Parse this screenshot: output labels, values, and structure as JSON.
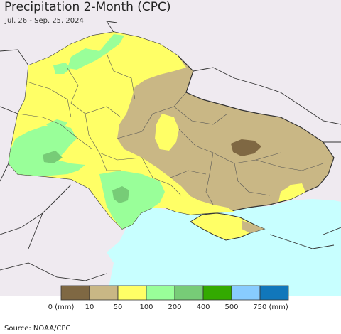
{
  "header": {
    "title": "Precipitation 2-Month (CPC)",
    "date_range": "Jul. 26 - Sep. 25, 2024"
  },
  "map": {
    "land_color": "#efeaf0",
    "water_color": "#c8ffff",
    "border_color": "#333333"
  },
  "legend": {
    "colors": [
      "#7f6843",
      "#c9b785",
      "#ffff66",
      "#99ff99",
      "#77cc77",
      "#33aa00",
      "#88ccff",
      "#1177bb"
    ],
    "labels": [
      "0 (mm)",
      "10",
      "50",
      "100",
      "200",
      "400",
      "500",
      "750 (mm)"
    ]
  },
  "footer": {
    "source": "Source: NOAA/CPC"
  }
}
